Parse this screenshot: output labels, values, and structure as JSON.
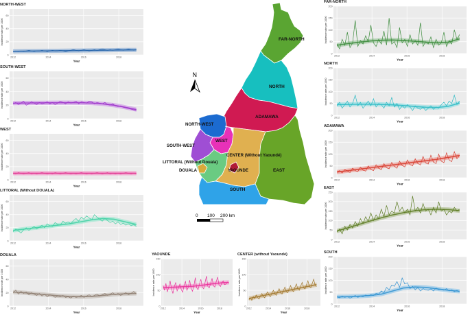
{
  "chart_data": [
    {
      "type": "line",
      "title": "NORTH-WEST",
      "xlabel": "Year",
      "ylabel": "Incidence rate per 1000",
      "x_ticks": [
        "2012",
        "2014",
        "2016",
        "2018"
      ],
      "y_ticks": [
        "0",
        "20",
        "40",
        "60"
      ],
      "ylim": [
        0,
        70
      ],
      "color": "#1f5fa8",
      "values": [
        5,
        6,
        5,
        6,
        5,
        6,
        7,
        6,
        5,
        6,
        6,
        7,
        6,
        5,
        6,
        7,
        6,
        6,
        7,
        6,
        5,
        6,
        7,
        8,
        7,
        6,
        7,
        8,
        7,
        6,
        7,
        8,
        7,
        8,
        9,
        8,
        7,
        8,
        7,
        8,
        9,
        8,
        7,
        8,
        9,
        8,
        7,
        8
      ],
      "trend": [
        5.5,
        5.7,
        5.9,
        6.1,
        6.3,
        6.5,
        6.7,
        6.9,
        7.1,
        7.3,
        7.5,
        7.6
      ]
    },
    {
      "type": "line",
      "title": "SOUTH-WEST",
      "xlabel": "Year",
      "ylabel": "Incidence rate per 1000",
      "x_ticks": [
        "2012",
        "2014",
        "2016",
        "2018"
      ],
      "y_ticks": [
        "0",
        "20",
        "40",
        "60"
      ],
      "ylim": [
        0,
        70
      ],
      "color": "#9b30c9",
      "values": [
        22,
        24,
        21,
        23,
        26,
        20,
        22,
        25,
        23,
        21,
        24,
        22,
        23,
        25,
        22,
        24,
        21,
        23,
        26,
        24,
        22,
        25,
        23,
        24,
        26,
        22,
        25,
        24,
        23,
        26,
        25,
        22,
        24,
        23,
        22,
        24,
        21,
        20,
        22,
        19,
        18,
        19,
        17,
        16,
        15,
        14,
        13,
        12
      ],
      "trend": [
        23,
        23.2,
        23.4,
        23.5,
        23.6,
        23.7,
        23.6,
        23.2,
        22,
        20,
        17,
        13.5
      ]
    },
    {
      "type": "line",
      "title": "WEST",
      "xlabel": "Year",
      "ylabel": "Incidence rate per 1000",
      "x_ticks": [
        "2012",
        "2014",
        "2016",
        "2018"
      ],
      "y_ticks": [
        "0",
        "20",
        "40",
        "60"
      ],
      "ylim": [
        0,
        70
      ],
      "color": "#e0338f",
      "values": [
        10,
        9,
        11,
        10,
        9,
        10,
        11,
        9,
        10,
        9,
        10,
        11,
        10,
        9,
        10,
        9,
        11,
        10,
        9,
        10,
        11,
        10,
        9,
        10,
        9,
        10,
        11,
        10,
        9,
        10,
        9,
        10,
        11,
        10,
        9,
        10,
        11,
        9,
        10,
        9,
        10,
        9,
        10,
        11,
        10,
        9,
        10,
        9
      ],
      "trend": [
        10,
        10,
        10,
        10,
        10,
        10,
        10,
        10,
        10,
        10,
        10,
        10
      ]
    },
    {
      "type": "line",
      "title": "LITTORAL (Without DOUALA)",
      "xlabel": "Year",
      "ylabel": "Incidence rate per 1000",
      "x_ticks": [
        "2012",
        "2014",
        "2016",
        "2018"
      ],
      "y_ticks": [
        "0",
        "20",
        "40",
        "60"
      ],
      "ylim": [
        0,
        70
      ],
      "color": "#3dcfa1",
      "values": [
        14,
        18,
        15,
        12,
        17,
        20,
        16,
        19,
        22,
        18,
        21,
        24,
        20,
        26,
        23,
        22,
        28,
        25,
        24,
        30,
        27,
        29,
        26,
        31,
        34,
        30,
        36,
        33,
        38,
        35,
        32,
        40,
        36,
        33,
        30,
        34,
        31,
        28,
        30,
        26,
        29,
        25,
        27,
        24,
        26,
        23,
        25,
        22
      ],
      "trend": [
        16,
        18,
        20,
        22,
        24,
        26,
        29,
        32,
        34,
        33,
        29,
        25
      ]
    },
    {
      "type": "line",
      "title": "DOUALA",
      "xlabel": "Year",
      "ylabel": "Incidence rate per 1000",
      "x_ticks": [
        "2012",
        "2014",
        "2016",
        "2018"
      ],
      "y_ticks": [
        "0",
        "20",
        "40",
        "60"
      ],
      "ylim": [
        0,
        70
      ],
      "color": "#8c7b6e",
      "values": [
        20,
        24,
        18,
        22,
        19,
        21,
        17,
        20,
        18,
        16,
        19,
        15,
        18,
        14,
        17,
        16,
        13,
        15,
        14,
        16,
        13,
        14,
        12,
        15,
        13,
        14,
        16,
        13,
        15,
        17,
        14,
        16,
        18,
        15,
        17,
        19,
        16,
        18,
        20,
        17,
        19,
        16,
        18,
        20,
        17,
        19,
        22,
        18
      ],
      "trend": [
        21,
        20,
        18.5,
        17,
        15.5,
        14.5,
        14,
        14.5,
        16,
        17.5,
        18.5,
        19
      ]
    },
    {
      "type": "line",
      "title": "YAOUNDE",
      "xlabel": "Year",
      "ylabel": "Incidence rate per 1000",
      "x_ticks": [
        "2012",
        "2014",
        "2016",
        "2018"
      ],
      "y_ticks": [
        "0",
        "50",
        "100",
        "150"
      ],
      "ylim": [
        0,
        150
      ],
      "color": "#e8309a",
      "values": [
        65,
        50,
        72,
        45,
        60,
        80,
        55,
        40,
        62,
        75,
        48,
        58,
        70,
        52,
        44,
        66,
        78,
        50,
        60,
        82,
        56,
        47,
        64,
        90,
        58,
        52,
        70,
        85,
        60,
        55,
        75,
        95,
        62,
        58,
        72,
        88,
        64,
        60,
        78,
        92,
        66,
        62,
        74,
        80,
        68,
        70,
        76,
        72
      ],
      "trend": [
        58,
        59,
        60,
        61,
        62,
        63,
        65,
        67,
        70,
        72,
        74,
        75
      ]
    },
    {
      "type": "line",
      "title": "CENTER  (without Yaoundé)",
      "xlabel": "Year",
      "ylabel": "Incidence rate per 1000",
      "x_ticks": [
        "2012",
        "2014",
        "2016",
        "2018"
      ],
      "y_ticks": [
        "0",
        "50",
        "100",
        "150"
      ],
      "ylim": [
        0,
        150
      ],
      "color": "#a0762a",
      "values": [
        20,
        26,
        18,
        30,
        24,
        35,
        28,
        22,
        32,
        40,
        30,
        26,
        38,
        45,
        34,
        30,
        42,
        50,
        38,
        34,
        46,
        55,
        42,
        38,
        50,
        60,
        46,
        42,
        56,
        65,
        50,
        46,
        60,
        70,
        54,
        50,
        64,
        75,
        58,
        54,
        68,
        80,
        62,
        58,
        72,
        85,
        66,
        62
      ],
      "trend": [
        24,
        28,
        32,
        36,
        40,
        44,
        48,
        52,
        56,
        60,
        64,
        68
      ]
    },
    {
      "type": "line",
      "title": "FAR-NORTH",
      "xlabel": "Year",
      "ylabel": "Incidence rate per 1000",
      "x_ticks": [
        "2012",
        "2014",
        "2016",
        "2018"
      ],
      "y_ticks": [
        "0",
        "50",
        "100",
        "150",
        "200"
      ],
      "ylim": [
        0,
        200
      ],
      "color": "#3a8a3a",
      "values": [
        40,
        20,
        60,
        35,
        90,
        25,
        45,
        140,
        30,
        55,
        40,
        75,
        50,
        120,
        45,
        30,
        60,
        40,
        95,
        35,
        150,
        40,
        50,
        25,
        110,
        45,
        60,
        30,
        80,
        40,
        55,
        35,
        130,
        30,
        50,
        40,
        70,
        25,
        60,
        35,
        45,
        90,
        30,
        55,
        40,
        100,
        60,
        80
      ],
      "trend": [
        35,
        42,
        48,
        53,
        56,
        57,
        55,
        52,
        48,
        45,
        48,
        62
      ]
    },
    {
      "type": "line",
      "title": "NORTH",
      "xlabel": "Year",
      "ylabel": "Incidence rate per 1000",
      "x_ticks": [
        "2012",
        "2014",
        "2016",
        "2018"
      ],
      "y_ticks": [
        "0",
        "50",
        "100",
        "150",
        "200"
      ],
      "ylim": [
        0,
        200
      ],
      "color": "#2bbac4",
      "values": [
        40,
        55,
        30,
        45,
        60,
        35,
        50,
        85,
        40,
        55,
        30,
        45,
        60,
        40,
        70,
        35,
        50,
        45,
        30,
        55,
        40,
        75,
        35,
        50,
        25,
        40,
        30,
        45,
        35,
        20,
        40,
        30,
        25,
        35,
        20,
        30,
        40,
        25,
        35,
        30,
        45,
        55,
        40,
        60,
        50,
        85,
        45,
        60
      ],
      "trend": [
        45,
        46,
        47,
        47,
        46,
        44,
        41,
        37,
        34,
        33,
        38,
        52
      ]
    },
    {
      "type": "line",
      "title": "ADAMAWA",
      "xlabel": "Year",
      "ylabel": "Incidence rate per 1000",
      "x_ticks": [
        "2012",
        "2014",
        "2016",
        "2018"
      ],
      "y_ticks": [
        "0",
        "50",
        "100",
        "150",
        "200"
      ],
      "ylim": [
        0,
        200
      ],
      "color": "#d63a2c",
      "values": [
        25,
        30,
        20,
        35,
        28,
        22,
        40,
        30,
        26,
        45,
        32,
        28,
        50,
        35,
        30,
        55,
        40,
        34,
        60,
        42,
        38,
        65,
        48,
        40,
        70,
        52,
        46,
        75,
        55,
        50,
        80,
        60,
        54,
        90,
        62,
        58,
        95,
        66,
        60,
        100,
        70,
        64,
        105,
        75,
        68,
        110,
        80,
        95
      ],
      "trend": [
        24,
        30,
        36,
        42,
        48,
        54,
        60,
        66,
        72,
        78,
        86,
        94
      ]
    },
    {
      "type": "line",
      "title": "EAST",
      "xlabel": "Year",
      "ylabel": "Incidence rate per 1000",
      "x_ticks": [
        "2012",
        "2014",
        "2016",
        "2018"
      ],
      "y_ticks": [
        "0",
        "50",
        "100",
        "150",
        "200",
        "250"
      ],
      "ylim": [
        0,
        250
      ],
      "color": "#5a7a20",
      "values": [
        40,
        55,
        30,
        70,
        50,
        80,
        60,
        95,
        70,
        110,
        85,
        120,
        95,
        140,
        100,
        130,
        110,
        160,
        120,
        180,
        130,
        150,
        140,
        200,
        150,
        170,
        140,
        160,
        130,
        230,
        150,
        170,
        140,
        190,
        150,
        160,
        130,
        170,
        140,
        200,
        150,
        160,
        130,
        150,
        140,
        170,
        150,
        160
      ],
      "trend": [
        45,
        62,
        80,
        98,
        115,
        130,
        142,
        152,
        158,
        160,
        158,
        152
      ]
    },
    {
      "type": "line",
      "title": "SOUTH",
      "xlabel": "Year",
      "ylabel": "Incidence rate per 1000",
      "x_ticks": [
        "2012",
        "2014",
        "2016",
        "2018"
      ],
      "y_ticks": [
        "0",
        "50",
        "100",
        "150",
        "200"
      ],
      "ylim": [
        0,
        200
      ],
      "color": "#2e90d0",
      "values": [
        30,
        26,
        34,
        28,
        32,
        25,
        30,
        36,
        28,
        33,
        30,
        38,
        34,
        40,
        36,
        45,
        42,
        55,
        48,
        70,
        60,
        80,
        75,
        95,
        70,
        110,
        85,
        90,
        65,
        75,
        60,
        70,
        55,
        65,
        60,
        58,
        64,
        55,
        68,
        60,
        62,
        58,
        65,
        55,
        60,
        52,
        58,
        50
      ],
      "trend": [
        30,
        31,
        33,
        36,
        42,
        55,
        68,
        72,
        70,
        64,
        58,
        54
      ]
    }
  ],
  "map": {
    "regions": [
      {
        "name": "FAR-NORTH",
        "color": "#5aa532"
      },
      {
        "name": "NORTH",
        "color": "#17bfbf"
      },
      {
        "name": "ADAMAWA",
        "color": "#d01a52"
      },
      {
        "name": "NORTH-WEST",
        "color": "#1c6bd0"
      },
      {
        "name": "WEST",
        "color": "#e831b8"
      },
      {
        "name": "SOUTH-WEST",
        "color": "#9f4ed4"
      },
      {
        "name": "LITTORAL (Without Douala)",
        "color": "#6acb82"
      },
      {
        "name": "DOUALA",
        "color": "#d8aa3a"
      },
      {
        "name": "CENTER (Without Yaoundé)",
        "color": "#e0b050"
      },
      {
        "name": "YAOUNDE",
        "color": "#b01a36"
      },
      {
        "name": "EAST",
        "color": "#68a528"
      },
      {
        "name": "SOUTH",
        "color": "#2fa3e8"
      }
    ],
    "north_label": "N",
    "scale_labels": [
      "0",
      "100",
      "200 km"
    ]
  }
}
